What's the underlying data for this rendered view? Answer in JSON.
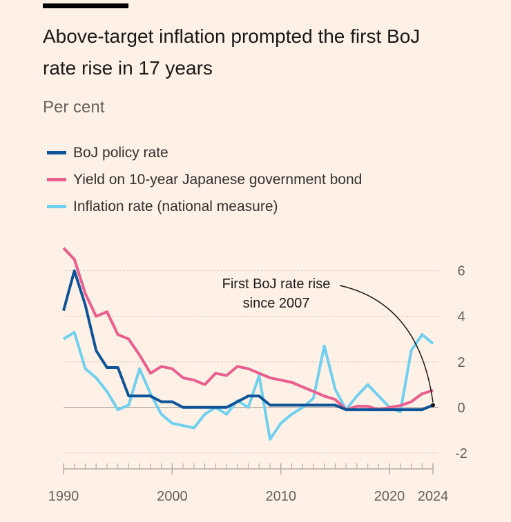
{
  "chart_data": {
    "type": "line",
    "title": "Above-target inflation prompted the first BoJ rate rise in 17 years",
    "subtitle": "Per cent",
    "annotation": [
      "First BoJ rate rise",
      "since 2007"
    ],
    "x": [
      1990,
      1991,
      1992,
      1993,
      1994,
      1995,
      1996,
      1997,
      1998,
      1999,
      2000,
      2001,
      2002,
      2003,
      2004,
      2005,
      2006,
      2007,
      2008,
      2009,
      2010,
      2011,
      2012,
      2013,
      2014,
      2015,
      2016,
      2017,
      2018,
      2019,
      2020,
      2021,
      2022,
      2023,
      2024
    ],
    "series": [
      {
        "name": "BoJ policy rate",
        "color": "#0f5499",
        "values": [
          4.25,
          6,
          4.5,
          2.5,
          1.75,
          1.75,
          0.5,
          0.5,
          0.5,
          0.25,
          0.25,
          0,
          0,
          0,
          0,
          0,
          0.25,
          0.5,
          0.5,
          0.1,
          0.1,
          0.1,
          0.1,
          0.1,
          0.1,
          0.1,
          -0.1,
          -0.1,
          -0.1,
          -0.1,
          -0.1,
          -0.1,
          -0.1,
          -0.1,
          0.1
        ]
      },
      {
        "name": "Yield on 10-year Japanese government bond",
        "color": "#eb5e8d",
        "values": [
          7,
          6.5,
          5,
          4,
          4.2,
          3.2,
          3,
          2.3,
          1.5,
          1.8,
          1.7,
          1.3,
          1.2,
          1,
          1.5,
          1.4,
          1.8,
          1.7,
          1.5,
          1.3,
          1.2,
          1.1,
          0.9,
          0.7,
          0.5,
          0.35,
          -0.1,
          0.05,
          0.05,
          -0.1,
          0,
          0.08,
          0.25,
          0.6,
          0.75
        ]
      },
      {
        "name": "Inflation rate (national measure)",
        "color": "#70d0ef",
        "values": [
          3,
          3.3,
          1.7,
          1.3,
          0.7,
          -0.1,
          0.1,
          1.7,
          0.6,
          -0.3,
          -0.7,
          -0.8,
          -0.9,
          -0.3,
          0,
          -0.3,
          0.3,
          0,
          1.4,
          -1.4,
          -0.7,
          -0.3,
          0,
          0.4,
          2.7,
          0.8,
          -0.1,
          0.5,
          1,
          0.5,
          0,
          -0.2,
          2.5,
          3.2,
          2.8
        ]
      }
    ],
    "xlim": [
      1990,
      2024
    ],
    "xticks": [
      1990,
      2000,
      2010,
      2020,
      2024
    ],
    "xminorticks": [
      1991,
      1992,
      1993,
      1994,
      1995,
      1996,
      1997,
      1998,
      1999,
      2001,
      2002,
      2003,
      2004,
      2005,
      2006,
      2007,
      2008,
      2009,
      2011,
      2012,
      2013,
      2014,
      2015,
      2016,
      2017,
      2018,
      2019,
      2021,
      2022,
      2023
    ],
    "ylim": [
      -2.7,
      8.2
    ],
    "yticks": [
      -2,
      0,
      2,
      4,
      6
    ],
    "grid": true
  }
}
